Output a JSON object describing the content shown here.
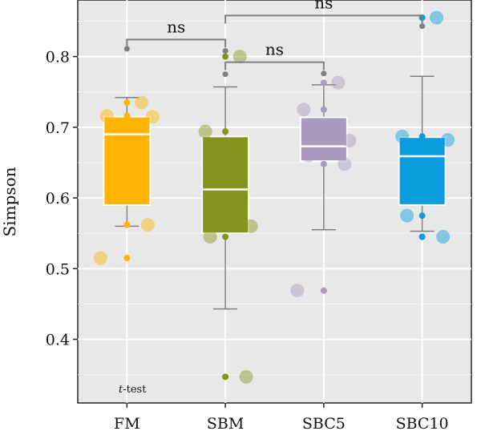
{
  "chart_data": {
    "type": "box",
    "title": "",
    "xlabel": "",
    "ylabel": "Simpson",
    "ylim": [
      0.31,
      0.88
    ],
    "yticks": [
      0.4,
      0.5,
      0.6,
      0.7,
      0.8
    ],
    "ytick_labels": [
      "0.4",
      "0.5",
      "0.6",
      "0.7",
      "0.8"
    ],
    "grid": true,
    "legend": "none",
    "categories": [
      "FM",
      "SBM",
      "SBC5",
      "SBC10"
    ],
    "groups": [
      {
        "name": "FM",
        "color": "#FFB400",
        "box": {
          "lower_whisker": 0.56,
          "q1": 0.59,
          "median": 0.69,
          "q3": 0.715,
          "upper_whisker": 0.742
        },
        "points": [
          0.735,
          0.716,
          0.715,
          0.672,
          0.562,
          0.515
        ]
      },
      {
        "name": "SBM",
        "color": "#84941C",
        "box": {
          "lower_whisker": 0.443,
          "q1": 0.55,
          "median": 0.612,
          "q3": 0.687,
          "upper_whisker": 0.757
        },
        "points": [
          0.8,
          0.694,
          0.56,
          0.545,
          0.347
        ]
      },
      {
        "name": "SBC5",
        "color": "#A99BBF",
        "box": {
          "lower_whisker": 0.555,
          "q1": 0.652,
          "median": 0.673,
          "q3": 0.714,
          "upper_whisker": 0.76
        },
        "points": [
          0.763,
          0.725,
          0.681,
          0.66,
          0.648,
          0.469
        ]
      },
      {
        "name": "SBC10",
        "color": "#0A9CDD",
        "box": {
          "lower_whisker": 0.553,
          "q1": 0.59,
          "median": 0.659,
          "q3": 0.686,
          "upper_whisker": 0.772
        },
        "points": [
          0.855,
          0.687,
          0.682,
          0.575,
          0.545
        ]
      }
    ],
    "outliers": [
      {
        "group": "FM",
        "value": 0.811
      },
      {
        "group": "SBM",
        "value": 0.808
      },
      {
        "group": "SBM",
        "value": 0.775
      },
      {
        "group": "SBC5",
        "value": 0.776
      },
      {
        "group": "SBC10",
        "value": 0.843
      }
    ],
    "comparisons": [
      {
        "from": "FM",
        "to": "SBM",
        "label": "ns"
      },
      {
        "from": "SBM",
        "to": "SBC5",
        "label": "ns"
      },
      {
        "from": "SBM",
        "to": "SBC10",
        "label": "ns"
      }
    ],
    "test_label": {
      "italic": "t",
      "rest": "-test"
    }
  }
}
